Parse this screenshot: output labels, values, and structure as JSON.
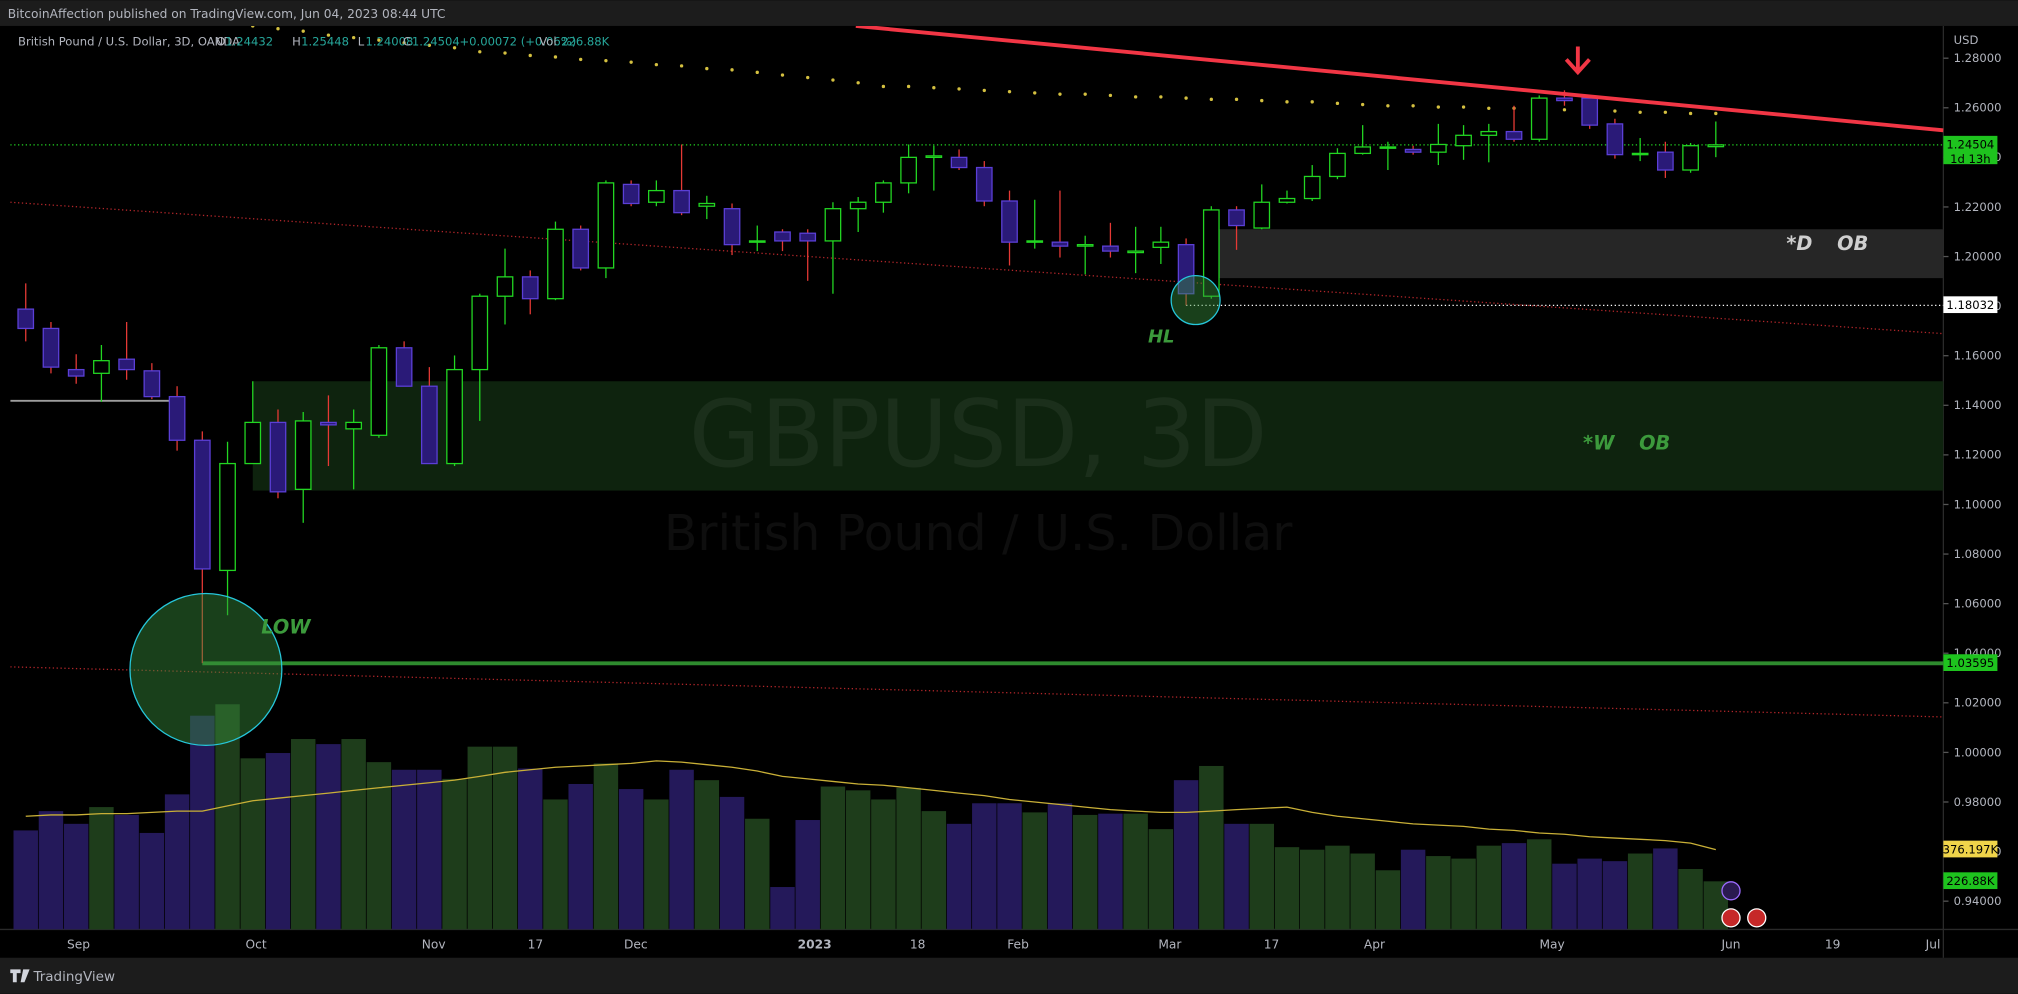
{
  "header": {
    "publisher": "BitcoinAffection published on TradingView.com, Jun 04, 2023 08:44 UTC"
  },
  "footer": {
    "brand": "TradingView"
  },
  "chart_data": {
    "type": "candlestick",
    "symbol": "British Pound / U.S. Dollar, 3D, OANDA",
    "ohlc_letters": [
      "O",
      "H",
      "L",
      "C"
    ],
    "change": "+0.00072 (+0.06%)",
    "currency": "USD",
    "countdown": "1d 13h",
    "watermark": {
      "symbol": "GBPUSD, 3D",
      "description": "British Pound / U.S. Dollar"
    },
    "colors": {
      "up": "#22d622",
      "down": "#5b3fd6",
      "down_body": "#2a1a78",
      "down_wick": "#e53935"
    },
    "open": [
      1.1788,
      1.171,
      1.1544,
      1.1529,
      1.1586,
      1.1539,
      1.1435,
      1.1259,
      1.0734,
      1.1165,
      1.1331,
      1.1061,
      1.1331,
      1.1305,
      1.1279,
      1.1632,
      1.1477,
      1.1165,
      1.1544,
      1.184,
      1.1918,
      1.183,
      1.211,
      1.1954,
      1.2291,
      1.2219,
      1.2266,
      1.2203,
      1.2193,
      1.2058,
      1.2099,
      1.2094,
      1.2063,
      1.2193,
      1.2219,
      1.2297,
      1.24,
      1.24,
      1.2359,
      1.2224,
      1.2058,
      1.2058,
      1.2042,
      1.2042,
      1.2016,
      1.2037,
      1.2048,
      1.184,
      1.2188,
      1.2115,
      1.2219,
      1.2234,
      1.2323,
      1.2416,
      1.2437,
      1.2432,
      1.2421,
      1.2447,
      1.2489,
      1.2504,
      1.2473,
      1.2639,
      1.2639,
      1.2535,
      1.2411,
      1.2421,
      1.2349,
      1.24432
    ],
    "high": [
      1.1892,
      1.1736,
      1.1606,
      1.1643,
      1.1736,
      1.157,
      1.1477,
      1.1295,
      1.1253,
      1.1497,
      1.1383,
      1.1373,
      1.144,
      1.1383,
      1.1643,
      1.1658,
      1.1554,
      1.1601,
      1.185,
      1.2032,
      1.1944,
      1.2141,
      1.2125,
      1.2307,
      1.2307,
      1.2307,
      1.2452,
      1.2245,
      1.2214,
      1.2125,
      1.211,
      1.211,
      1.2219,
      1.224,
      1.2307,
      1.2452,
      1.2447,
      1.2432,
      1.2385,
      1.2266,
      1.2229,
      1.2266,
      1.2084,
      1.2136,
      1.212,
      1.212,
      1.2073,
      1.2203,
      1.2203,
      1.2291,
      1.2266,
      1.2369,
      1.2437,
      1.253,
      1.2463,
      1.2447,
      1.2535,
      1.253,
      1.2535,
      1.2608,
      1.265,
      1.267,
      1.265,
      1.2556,
      1.2478,
      1.2463,
      1.2458,
      1.25448
    ],
    "low": [
      1.1658,
      1.1529,
      1.1487,
      1.1414,
      1.1503,
      1.1425,
      1.1217,
      1.036,
      1.0553,
      1.1165,
      1.1025,
      1.0926,
      1.1155,
      1.1061,
      1.1269,
      1.1477,
      1.1165,
      1.1155,
      1.1337,
      1.1726,
      1.1767,
      1.1824,
      1.1944,
      1.1913,
      1.2203,
      1.2203,
      1.2167,
      1.2151,
      1.2006,
      1.2022,
      1.2022,
      1.1902,
      1.185,
      1.2099,
      1.2177,
      1.2255,
      1.2266,
      1.2349,
      1.2203,
      1.1964,
      1.2032,
      1.1996,
      1.1928,
      1.1996,
      1.1933,
      1.197,
      1.1803,
      1.183,
      1.2027,
      1.211,
      1.2214,
      1.2224,
      1.2312,
      1.2411,
      1.2349,
      1.2411,
      1.2369,
      1.239,
      1.238,
      1.2463,
      1.2463,
      1.2608,
      1.2515,
      1.2395,
      1.2385,
      1.2317,
      1.2338,
      1.24008
    ],
    "close": [
      1.171,
      1.1554,
      1.1518,
      1.158,
      1.1544,
      1.1435,
      1.1259,
      1.074,
      1.1165,
      1.1331,
      1.1051,
      1.1337,
      1.1321,
      1.1331,
      1.1632,
      1.1477,
      1.1165,
      1.1544,
      1.184,
      1.1918,
      1.183,
      1.211,
      1.1954,
      1.2297,
      1.2214,
      1.2266,
      1.2177,
      1.2214,
      1.2048,
      1.2063,
      1.2063,
      1.2063,
      1.2193,
      1.2219,
      1.2297,
      1.24,
      1.2406,
      1.2359,
      1.2224,
      1.2058,
      1.2063,
      1.2042,
      1.2048,
      1.2022,
      1.2022,
      1.2058,
      1.185,
      1.2188,
      1.2125,
      1.2219,
      1.2234,
      1.2323,
      1.2416,
      1.2442,
      1.2442,
      1.2421,
      1.2452,
      1.2489,
      1.2504,
      1.2473,
      1.2639,
      1.2629,
      1.253,
      1.2411,
      1.2416,
      1.2349,
      1.2447,
      1.24504
    ],
    "sar": {
      "color": "#d4c040",
      "values": [
        null,
        null,
        null,
        null,
        null,
        null,
        null,
        null,
        null,
        1.293,
        1.2919,
        1.2909,
        1.2893,
        1.2883,
        1.2873,
        1.2862,
        1.2852,
        1.2842,
        1.2826,
        1.2821,
        1.2811,
        1.2805,
        1.2795,
        1.279,
        1.2784,
        1.2774,
        1.2769,
        1.2758,
        1.2753,
        1.2743,
        1.2732,
        1.2722,
        1.2712,
        1.2701,
        1.2686,
        1.2686,
        1.2681,
        1.2676,
        1.267,
        1.2665,
        1.266,
        1.2655,
        1.2655,
        1.265,
        1.2644,
        1.2644,
        1.2639,
        1.2634,
        1.2634,
        1.2629,
        1.2624,
        1.2624,
        1.2618,
        1.2613,
        1.2608,
        1.2608,
        1.2603,
        1.2603,
        1.2598,
        1.2598,
        1.2592,
        1.2592,
        1.2587,
        1.2587,
        1.2582,
        1.2582,
        1.2577,
        1.2577
      ]
    },
    "volume": {
      "name": "Vol",
      "colors": {
        "up": "#1e3d1b",
        "down": "#24195a"
      },
      "label": "226.88K",
      "values": [
        467000,
        558000,
        498000,
        577000,
        540000,
        455000,
        637000,
        1008000,
        1062000,
        807000,
        832000,
        898000,
        874000,
        898000,
        789000,
        753000,
        753000,
        710000,
        862000,
        862000,
        759000,
        613000,
        686000,
        783000,
        662000,
        613000,
        753000,
        704000,
        625000,
        522000,
        200000,
        516000,
        674000,
        656000,
        613000,
        668000,
        558000,
        498000,
        595000,
        595000,
        552000,
        595000,
        540000,
        546000,
        546000,
        473000,
        704000,
        771000,
        498000,
        498000,
        388000,
        376000,
        395000,
        358000,
        279000,
        376000,
        346000,
        334000,
        395000,
        407000,
        425000,
        310000,
        334000,
        322000,
        358000,
        382000,
        285000,
        226880
      ]
    },
    "volume_ma": {
      "color": "#c9b037",
      "label": "376.197K",
      "values": [
        534000,
        540000,
        540000,
        546000,
        546000,
        552000,
        558000,
        558000,
        583000,
        607000,
        619000,
        631000,
        643000,
        656000,
        668000,
        680000,
        692000,
        704000,
        722000,
        741000,
        753000,
        765000,
        771000,
        777000,
        783000,
        795000,
        789000,
        777000,
        765000,
        747000,
        722000,
        710000,
        698000,
        686000,
        680000,
        668000,
        656000,
        643000,
        631000,
        613000,
        601000,
        589000,
        577000,
        565000,
        558000,
        552000,
        552000,
        558000,
        565000,
        571000,
        577000,
        552000,
        534000,
        522000,
        510000,
        498000,
        492000,
        486000,
        473000,
        467000,
        455000,
        449000,
        437000,
        431000,
        425000,
        419000,
        407000,
        376197
      ]
    },
    "ylim": [
      0.9286,
      1.293
    ],
    "yticks": [
      {
        "value": 1.28,
        "label": "1.28000"
      },
      {
        "value": 1.26,
        "label": "1.26000"
      },
      {
        "value": 1.24,
        "label": "1.24000"
      },
      {
        "value": 1.22,
        "label": "1.22000"
      },
      {
        "value": 1.2,
        "label": "1.20000"
      },
      {
        "value": 1.18,
        "label": "1.18000"
      },
      {
        "value": 1.16,
        "label": "1.16000"
      },
      {
        "value": 1.14,
        "label": "1.14000"
      },
      {
        "value": 1.12,
        "label": "1.12000"
      },
      {
        "value": 1.1,
        "label": "1.10000"
      },
      {
        "value": 1.08,
        "label": "1.08000"
      },
      {
        "value": 1.06,
        "label": "1.06000"
      },
      {
        "value": 1.04,
        "label": "1.04000"
      },
      {
        "value": 1.02,
        "label": "1.02000"
      },
      {
        "value": 1,
        "label": "1.00000"
      },
      {
        "value": 0.98,
        "label": "0.98000"
      },
      {
        "value": 0.96,
        "label": "0.96000"
      },
      {
        "value": 0.94,
        "label": "0.94000"
      }
    ],
    "x_labels": [
      "Sep",
      "Oct",
      "Nov",
      "17",
      "Dec",
      "2023",
      "18",
      "Feb",
      "Mar",
      "17",
      "Apr",
      "May",
      "Jun",
      "19",
      "Jul"
    ],
    "trendline": {
      "color": "#f23645",
      "start": 1.293,
      "end": 1.2509
    },
    "channel": [
      {
        "color": "#b3262a",
        "start": 1.2219,
        "end": 1.1689
      },
      {
        "color": "#b3262a",
        "start": 1.0345,
        "end": 1.0143
      }
    ],
    "levels": [
      {
        "value": 1.18032,
        "color": "#ffffff"
      },
      {
        "value": 1.03595,
        "color": "#2e8b2e"
      },
      {
        "value": 1.1418,
        "color": "#9e9e9e"
      }
    ],
    "zones": [
      {
        "label": "*D OB",
        "top": 1.211,
        "bottom": 1.1913,
        "color": "#262626"
      },
      {
        "label": "*W OB",
        "top": 1.1497,
        "bottom": 1.1056,
        "color": "#0e230e"
      }
    ],
    "annotations": [
      "HL",
      "LOW"
    ]
  }
}
